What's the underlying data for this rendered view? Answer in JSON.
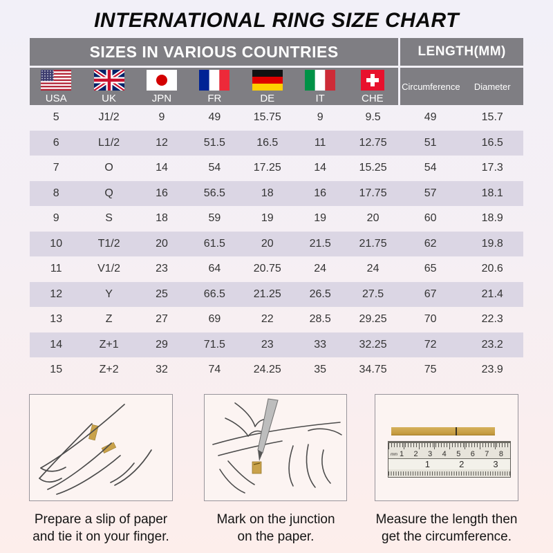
{
  "title": "INTERNATIONAL RING SIZE CHART",
  "table": {
    "header_left": "SIZES IN VARIOUS COUNTRIES",
    "header_right": "LENGTH(MM)",
    "countries": [
      {
        "label": "USA",
        "flag": "usa-flag"
      },
      {
        "label": "UK",
        "flag": "uk-flag"
      },
      {
        "label": "JPN",
        "flag": "japan-flag"
      },
      {
        "label": "FR",
        "flag": "france-flag"
      },
      {
        "label": "DE",
        "flag": "germany-flag"
      },
      {
        "label": "IT",
        "flag": "italy-flag"
      },
      {
        "label": "CHE",
        "flag": "switzerland-flag"
      }
    ],
    "length_columns": [
      "Circumference",
      "Diameter"
    ],
    "rows": [
      [
        "5",
        "J1/2",
        "9",
        "49",
        "15.75",
        "9",
        "9.5",
        "49",
        "15.7"
      ],
      [
        "6",
        "L1/2",
        "12",
        "51.5",
        "16.5",
        "11",
        "12.75",
        "51",
        "16.5"
      ],
      [
        "7",
        "O",
        "14",
        "54",
        "17.25",
        "14",
        "15.25",
        "54",
        "17.3"
      ],
      [
        "8",
        "Q",
        "16",
        "56.5",
        "18",
        "16",
        "17.75",
        "57",
        "18.1"
      ],
      [
        "9",
        "S",
        "18",
        "59",
        "19",
        "19",
        "20",
        "60",
        "18.9"
      ],
      [
        "10",
        "T1/2",
        "20",
        "61.5",
        "20",
        "21.5",
        "21.75",
        "62",
        "19.8"
      ],
      [
        "11",
        "V1/2",
        "23",
        "64",
        "20.75",
        "24",
        "24",
        "65",
        "20.6"
      ],
      [
        "12",
        "Y",
        "25",
        "66.5",
        "21.25",
        "26.5",
        "27.5",
        "67",
        "21.4"
      ],
      [
        "13",
        "Z",
        "27",
        "69",
        "22",
        "28.5",
        "29.25",
        "70",
        "22.3"
      ],
      [
        "14",
        "Z+1",
        "29",
        "71.5",
        "23",
        "33",
        "32.25",
        "72",
        "23.2"
      ],
      [
        "15",
        "Z+2",
        "32",
        "74",
        "24.25",
        "35",
        "34.75",
        "75",
        "23.9"
      ]
    ]
  },
  "instructions": [
    {
      "illustration": "hand-with-paper-strip",
      "lines": [
        "Prepare a slip of paper",
        "and tie it on your finger."
      ]
    },
    {
      "illustration": "pen-marking-junction",
      "lines": [
        "Mark on the junction",
        "on the paper."
      ]
    },
    {
      "illustration": "ruler-measuring-strip",
      "lines": [
        "Measure the length then",
        "get the circumference."
      ],
      "ruler": {
        "unit_label": "mm",
        "cm_numbers": [
          "1",
          "2",
          "3",
          "4",
          "5",
          "6",
          "7",
          "8"
        ],
        "inch_numbers": [
          "1",
          "2",
          "3"
        ]
      }
    }
  ],
  "colors": {
    "header_gray": "#7f7e83",
    "row_stripe": "#dbd6e4",
    "paper_gold": "#c9a24b",
    "background_top": "#f2f0f8",
    "background_bottom": "#fdeeeb"
  }
}
